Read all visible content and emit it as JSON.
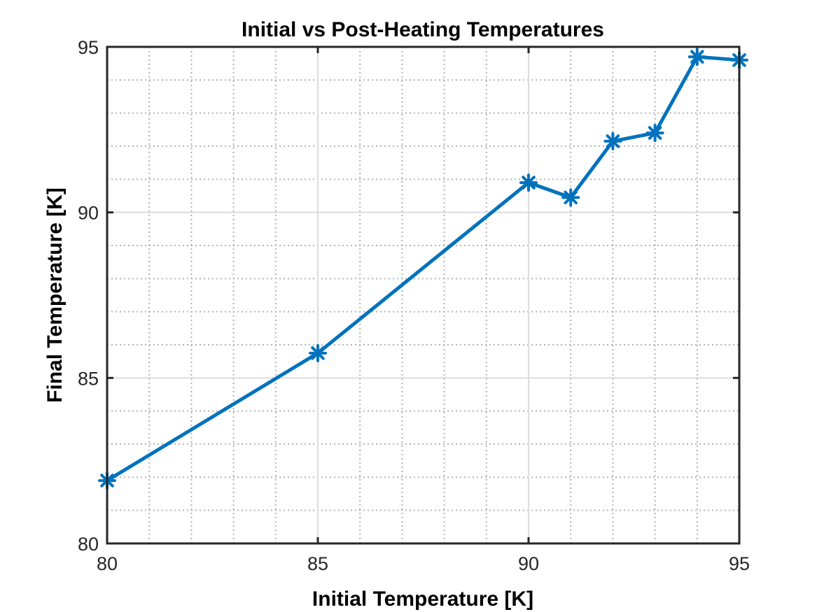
{
  "chart_data": {
    "type": "line",
    "title": "Initial vs Post-Heating Temperatures",
    "xlabel": "Initial Temperature [K]",
    "ylabel": "Final Temperature [K]",
    "xlim": [
      80,
      95
    ],
    "ylim": [
      80,
      95
    ],
    "x_ticks": [
      80,
      85,
      90,
      95
    ],
    "y_ticks": [
      80,
      85,
      90,
      95
    ],
    "x_tick_labels": [
      "80",
      "85",
      "90",
      "95"
    ],
    "y_tick_labels": [
      "80",
      "85",
      "90",
      "95"
    ],
    "x_minor_step": 1,
    "y_minor_step": 1,
    "grid": true,
    "minor_grid": true,
    "legend": false,
    "marker": "asterisk",
    "series": [
      {
        "color": "#0072BD",
        "x": [
          80,
          85,
          90,
          91,
          92,
          93,
          94,
          95
        ],
        "y": [
          81.9,
          85.75,
          90.9,
          90.45,
          92.15,
          92.4,
          94.7,
          94.6
        ]
      }
    ]
  }
}
